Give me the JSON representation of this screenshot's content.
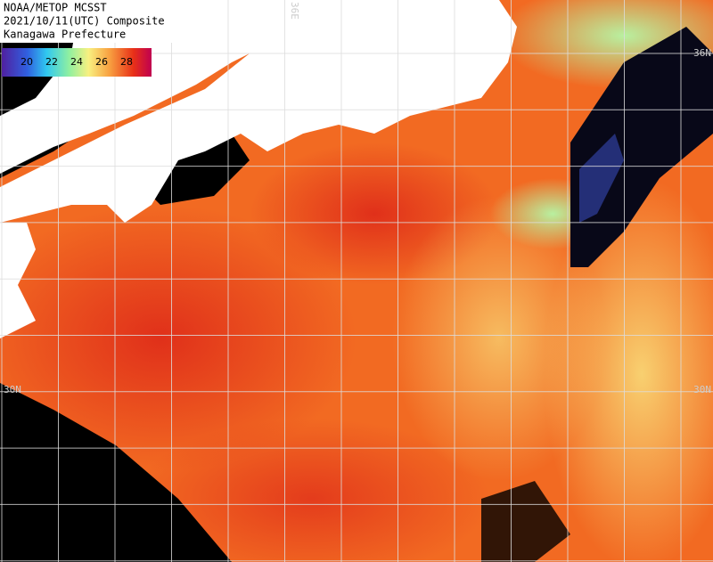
{
  "header": {
    "lines": [
      "NOAA/METOP MCSST",
      "2021/10/11(UTC) Composite",
      "Kanagawa Prefecture"
    ]
  },
  "colorbar": {
    "range": [
      18,
      30
    ],
    "ticks": [
      20,
      22,
      24,
      26,
      28
    ]
  },
  "grid_labels": {
    "top": "36E",
    "left": "30N",
    "right_upper": "36N",
    "right_lower": "30N"
  }
}
